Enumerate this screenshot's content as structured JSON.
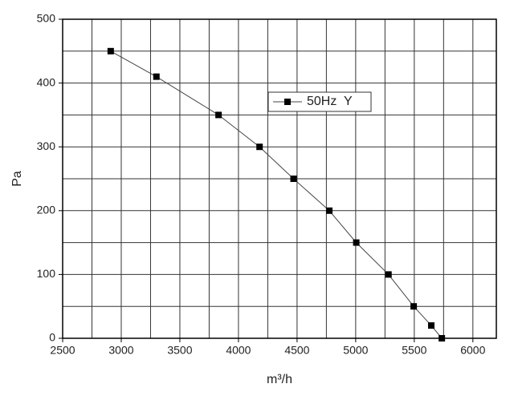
{
  "chart_data": {
    "type": "line",
    "x_label": "m³/h",
    "y_label": "Pa",
    "series": [
      {
        "name": "50Hz  Y",
        "color": "#000000",
        "x": [
          2910,
          3300,
          3830,
          4180,
          4470,
          4775,
          5005,
          5280,
          5495,
          5645,
          5735
        ],
        "values": [
          450,
          410,
          350,
          300,
          250,
          200,
          150,
          100,
          50,
          20,
          0
        ]
      }
    ],
    "xlim": [
      2500,
      6200
    ],
    "xticks": [
      2500,
      3000,
      3500,
      4000,
      4500,
      5000,
      5500,
      6000
    ],
    "x_minor_grid": [
      2750,
      3250,
      3750,
      4250,
      4750,
      5250,
      5750
    ],
    "ylim": [
      0,
      500
    ],
    "yticks": [
      0,
      100,
      200,
      300,
      400,
      500
    ],
    "y_minor_grid": [
      50,
      150,
      250,
      350,
      450
    ],
    "grid": true
  }
}
